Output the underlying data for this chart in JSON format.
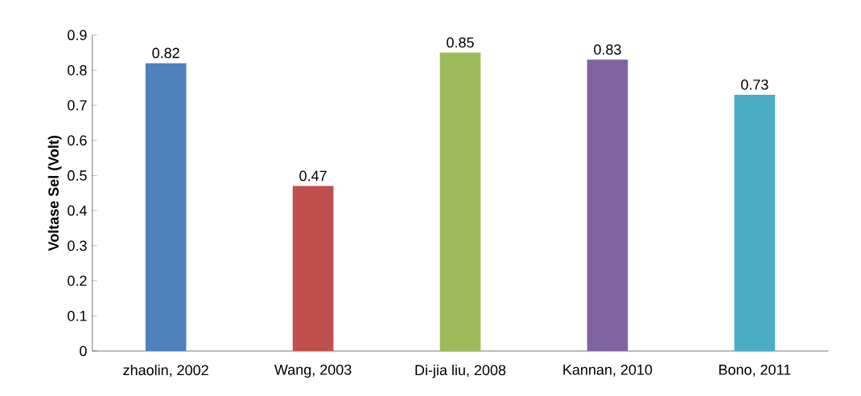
{
  "chart_data": {
    "type": "bar",
    "ylabel": "Voltase Sel (Volt)",
    "categories": [
      "zhaolin, 2002",
      "Wang, 2003",
      "Di-jia liu, 2008",
      "Kannan, 2010",
      "Bono, 2011"
    ],
    "values": [
      0.82,
      0.47,
      0.85,
      0.83,
      0.73
    ],
    "colors": [
      "#4f81bd",
      "#c0504d",
      "#9bbb59",
      "#8064a2",
      "#4bacc6"
    ],
    "ylim": [
      0,
      0.9
    ],
    "yticks": [
      0,
      0.1,
      0.2,
      0.3,
      0.4,
      0.5,
      0.6,
      0.7,
      0.8,
      0.9
    ],
    "data_labels": true
  }
}
